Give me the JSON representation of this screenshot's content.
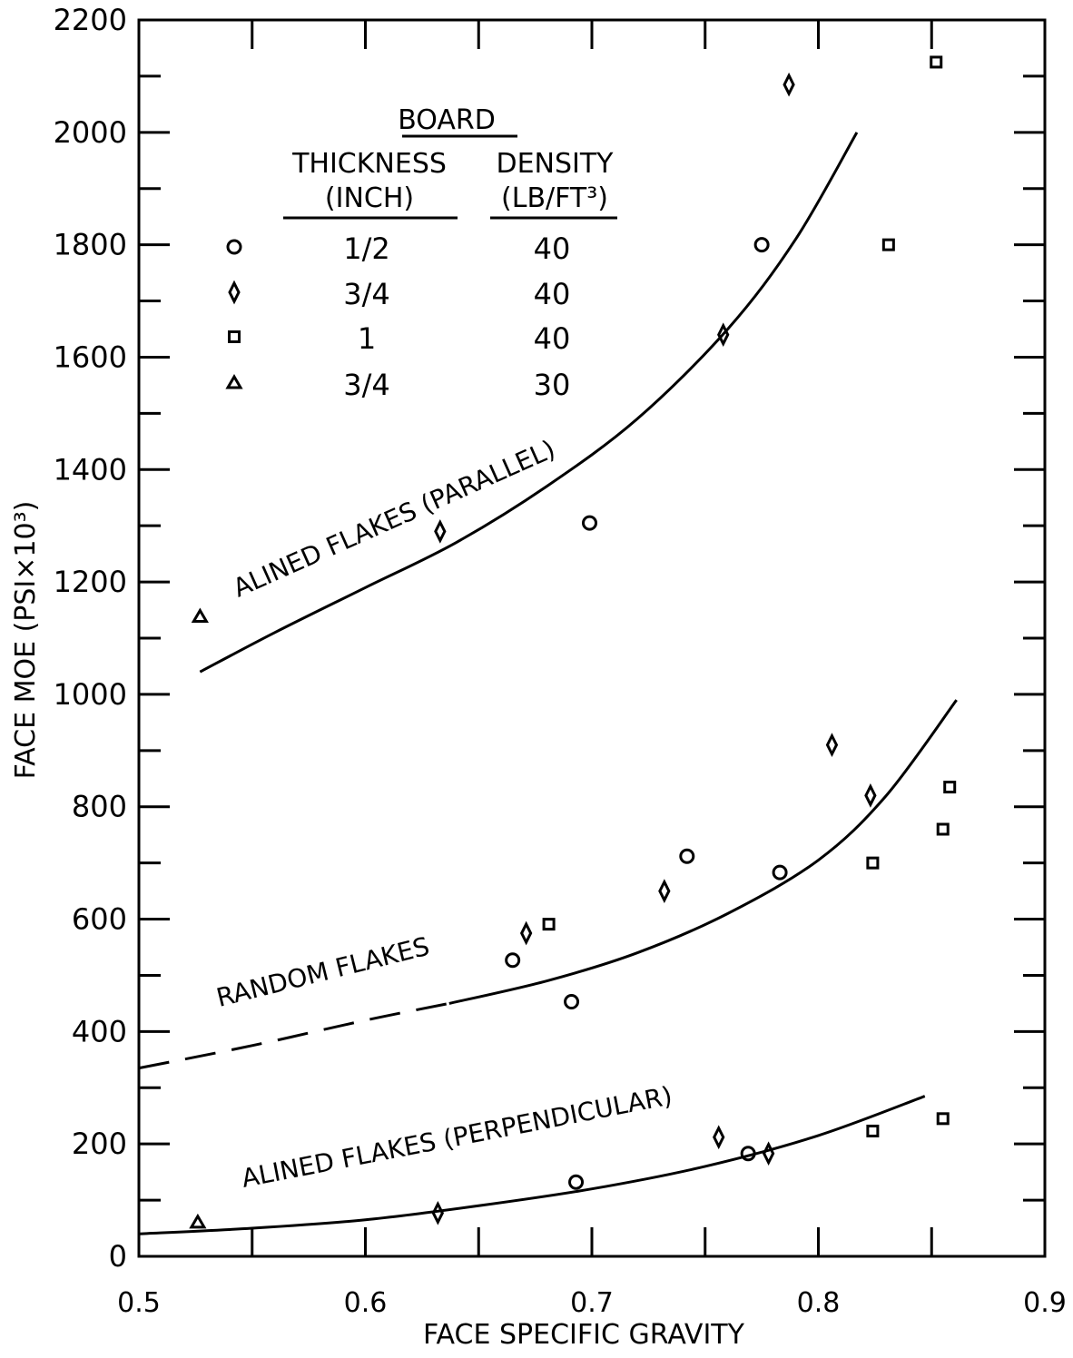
{
  "chart_data": {
    "type": "scatter",
    "xlabel": "FACE SPECIFIC GRAVITY",
    "ylabel": "FACE MOE (PSI×10³)",
    "xlim": [
      0.5,
      0.9
    ],
    "ylim": [
      0,
      2200
    ],
    "x_ticks": [
      "0.5",
      "0.6",
      "0.7",
      "0.8",
      "0.9"
    ],
    "y_ticks": [
      "0",
      "200",
      "400",
      "600",
      "800",
      "1000",
      "1200",
      "1400",
      "1600",
      "1800",
      "2000",
      "2200"
    ],
    "grid": false,
    "legend": {
      "title": "BOARD",
      "col1_header": [
        "THICKNESS",
        "(INCH)"
      ],
      "col2_header": [
        "DENSITY",
        "(LB/FT³)"
      ],
      "position": "top-left",
      "entries": [
        {
          "marker": "circle",
          "thickness": "1/2",
          "density": "40"
        },
        {
          "marker": "diamond",
          "thickness": "3/4",
          "density": "40"
        },
        {
          "marker": "square",
          "thickness": "1",
          "density": "40"
        },
        {
          "marker": "triangle",
          "thickness": "3/4",
          "density": "30"
        }
      ]
    },
    "curves": [
      {
        "label": "ALINED FLAKES (PARALLEL)",
        "style": "solid",
        "x": [
          0.527,
          0.56,
          0.6,
          0.64,
          0.68,
          0.72,
          0.76,
          0.79,
          0.817
        ],
        "y": [
          1040,
          1110,
          1190,
          1270,
          1370,
          1490,
          1650,
          1810,
          2000
        ]
      },
      {
        "label": "RANDOM FLAKES",
        "style": "dashed-to-solid",
        "dashed_until": 0.637,
        "x": [
          0.5,
          0.55,
          0.6,
          0.637,
          0.68,
          0.72,
          0.76,
          0.8,
          0.83,
          0.861
        ],
        "y": [
          335,
          375,
          420,
          450,
          490,
          540,
          610,
          705,
          820,
          990
        ]
      },
      {
        "label": "ALINED FLAKES (PERPENDICULAR)",
        "style": "solid",
        "x": [
          0.5,
          0.55,
          0.6,
          0.65,
          0.7,
          0.75,
          0.8,
          0.847
        ],
        "y": [
          40,
          50,
          65,
          90,
          120,
          160,
          215,
          285
        ]
      }
    ],
    "series": [
      {
        "marker": "circle",
        "x": [
          0.775,
          0.699,
          0.665,
          0.742,
          0.691,
          0.783,
          0.693,
          0.769
        ],
        "y": [
          1800,
          1305,
          527,
          712,
          453,
          683,
          132,
          183
        ]
      },
      {
        "marker": "diamond",
        "x": [
          0.787,
          0.758,
          0.633,
          0.806,
          0.823,
          0.732,
          0.671,
          0.756,
          0.632,
          0.778
        ],
        "y": [
          2085,
          1640,
          1290,
          910,
          820,
          650,
          575,
          212,
          77,
          183
        ]
      },
      {
        "marker": "square",
        "x": [
          0.852,
          0.831,
          0.681,
          0.824,
          0.855,
          0.858,
          0.824,
          0.855
        ],
        "y": [
          2125,
          1800,
          591,
          700,
          760,
          835,
          223,
          245
        ]
      },
      {
        "marker": "triangle",
        "x": [
          0.527,
          0.526
        ],
        "y": [
          1138,
          60
        ]
      }
    ]
  }
}
